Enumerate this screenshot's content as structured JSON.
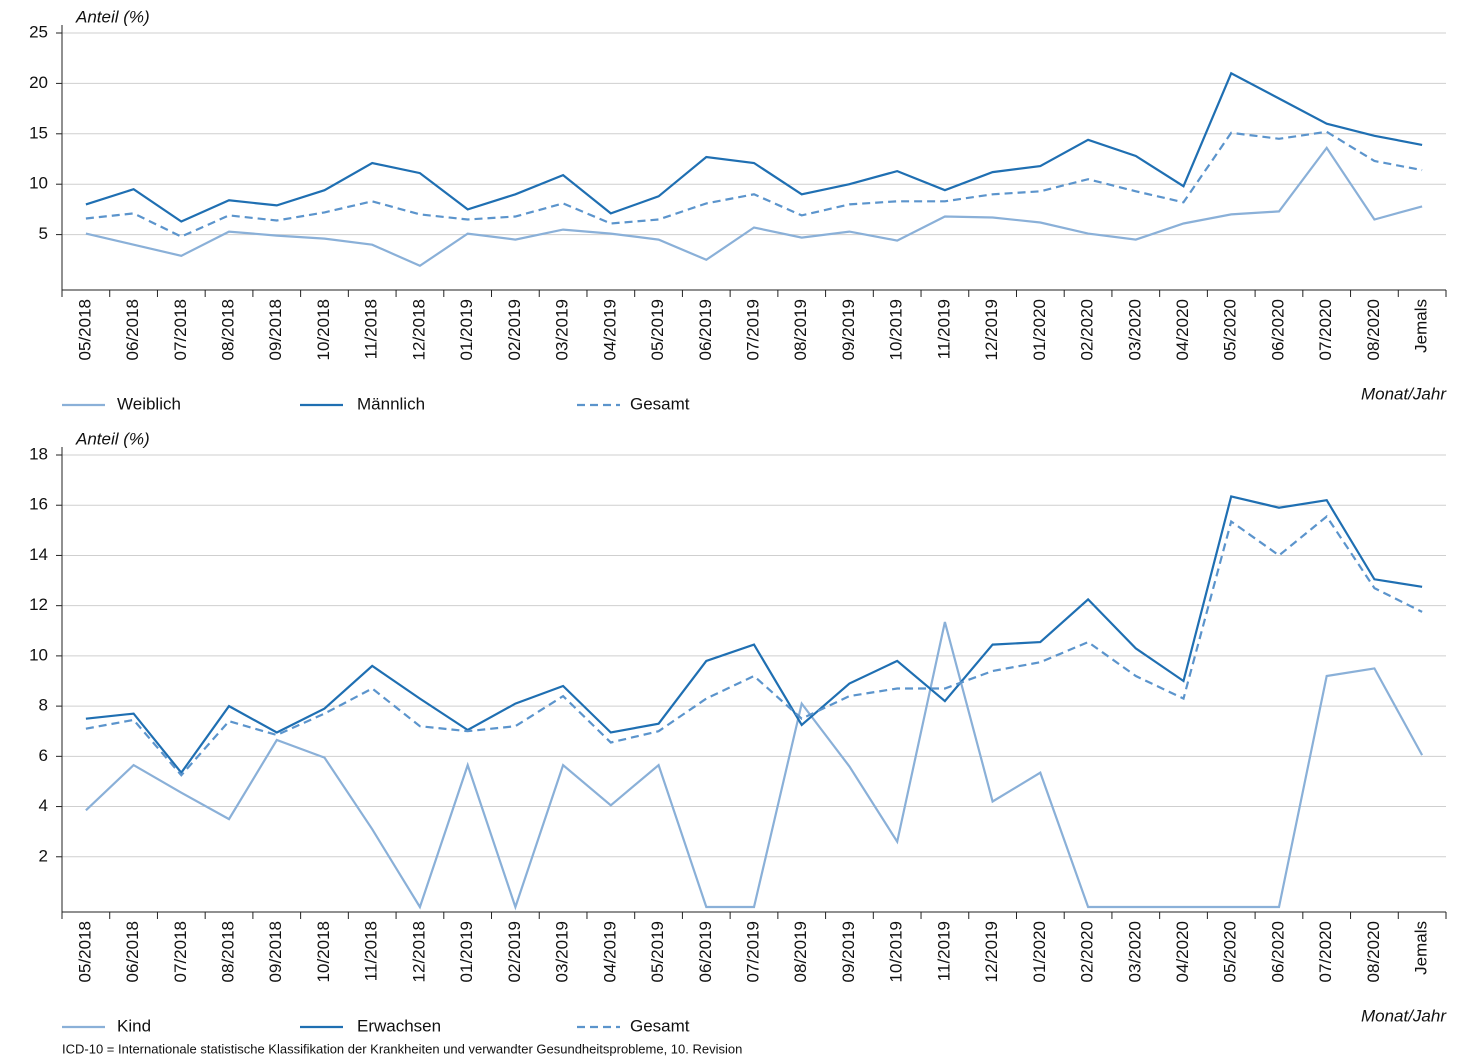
{
  "chart_data": [
    {
      "type": "line",
      "y_label": "Anteil (%)",
      "x_label": "Monat/Jahr",
      "categories": [
        "05/2018",
        "06/2018",
        "07/2018",
        "08/2018",
        "09/2018",
        "10/2018",
        "11/2018",
        "12/2018",
        "01/2019",
        "02/2019",
        "03/2019",
        "04/2019",
        "05/2019",
        "06/2019",
        "07/2019",
        "08/2019",
        "09/2019",
        "10/2019",
        "11/2019",
        "12/2019",
        "01/2020",
        "02/2020",
        "03/2020",
        "04/2020",
        "05/2020",
        "06/2020",
        "07/2020",
        "08/2020",
        "Jemals"
      ],
      "ylim": [
        0,
        25
      ],
      "yticks": [
        5,
        10,
        15,
        20,
        25
      ],
      "grid": true,
      "series": [
        {
          "name": "Weiblich",
          "color": "#8ab0d8",
          "dashed": false,
          "values": [
            5.1,
            4.0,
            2.9,
            5.3,
            4.9,
            4.6,
            4.0,
            1.9,
            5.1,
            4.5,
            5.5,
            5.1,
            4.5,
            2.5,
            5.7,
            4.7,
            5.3,
            4.4,
            6.8,
            6.7,
            6.2,
            5.1,
            4.5,
            6.1,
            7.0,
            7.3,
            13.6,
            6.5,
            7.8
          ]
        },
        {
          "name": "Männlich",
          "color": "#1f6fb2",
          "dashed": false,
          "values": [
            8.0,
            9.5,
            6.3,
            8.4,
            7.9,
            9.4,
            12.1,
            11.1,
            7.5,
            9.0,
            10.9,
            7.1,
            8.8,
            12.7,
            12.1,
            9.0,
            10.0,
            11.3,
            9.4,
            11.2,
            11.8,
            14.4,
            12.8,
            9.8,
            21.0,
            18.5,
            16.0,
            14.8,
            13.9
          ]
        },
        {
          "name": "Gesamt",
          "color": "#5b94cc",
          "dashed": true,
          "values": [
            6.6,
            7.1,
            4.8,
            6.9,
            6.4,
            7.2,
            8.3,
            7.0,
            6.5,
            6.8,
            8.1,
            6.1,
            6.5,
            8.1,
            9.0,
            6.9,
            8.0,
            8.3,
            8.3,
            9.0,
            9.3,
            10.5,
            9.3,
            8.2,
            15.1,
            14.5,
            15.2,
            12.3,
            11.4
          ]
        }
      ]
    },
    {
      "type": "line",
      "y_label": "Anteil (%)",
      "x_label": "Monat/Jahr",
      "categories": [
        "05/2018",
        "06/2018",
        "07/2018",
        "08/2018",
        "09/2018",
        "10/2018",
        "11/2018",
        "12/2018",
        "01/2019",
        "02/2019",
        "03/2019",
        "04/2019",
        "05/2019",
        "06/2019",
        "07/2019",
        "08/2019",
        "09/2019",
        "10/2019",
        "11/2019",
        "12/2019",
        "01/2020",
        "02/2020",
        "03/2020",
        "04/2020",
        "05/2020",
        "06/2020",
        "07/2020",
        "08/2020",
        "Jemals"
      ],
      "ylim": [
        0,
        18
      ],
      "yticks": [
        2,
        4,
        6,
        8,
        10,
        12,
        14,
        16,
        18
      ],
      "grid": true,
      "series": [
        {
          "name": "Kind",
          "color": "#8ab0d8",
          "dashed": false,
          "values": [
            3.85,
            5.65,
            4.55,
            3.5,
            6.65,
            5.95,
            3.1,
            0,
            5.65,
            0,
            5.65,
            4.05,
            5.65,
            0,
            0,
            8.1,
            5.6,
            2.6,
            11.35,
            4.2,
            5.35,
            0,
            0,
            0,
            0,
            0,
            9.2,
            9.5,
            6.05
          ]
        },
        {
          "name": "Erwachsen",
          "color": "#1f6fb2",
          "dashed": false,
          "values": [
            7.5,
            7.7,
            5.35,
            8.0,
            6.95,
            7.9,
            9.6,
            8.3,
            7.05,
            8.1,
            8.8,
            6.95,
            7.3,
            9.8,
            10.45,
            7.25,
            8.9,
            9.8,
            8.2,
            10.45,
            10.55,
            12.25,
            10.3,
            9.0,
            16.35,
            15.9,
            16.2,
            13.05,
            12.75
          ]
        },
        {
          "name": "Gesamt",
          "color": "#5b94cc",
          "dashed": true,
          "values": [
            7.1,
            7.45,
            5.25,
            7.4,
            6.85,
            7.7,
            8.7,
            7.2,
            7.0,
            7.2,
            8.4,
            6.55,
            7.0,
            8.3,
            9.2,
            7.5,
            8.4,
            8.7,
            8.7,
            9.4,
            9.75,
            10.55,
            9.2,
            8.3,
            15.35,
            14.0,
            15.55,
            12.7,
            11.75
          ]
        }
      ]
    }
  ],
  "footnote": "ICD-10 = Internationale statistische Klassifikation der Krankheiten und verwandter Gesundheitsprobleme, 10. Revision"
}
